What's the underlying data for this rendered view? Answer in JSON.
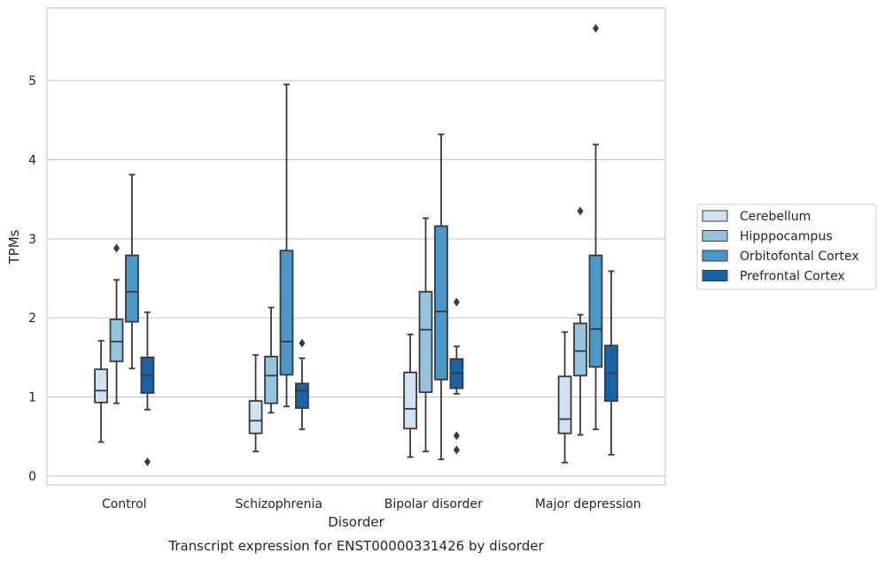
{
  "chart_data": {
    "type": "box",
    "xlabel": "Disorder",
    "ylabel": "TPMs",
    "caption": "Transcript expression for ENST00000331426 by disorder",
    "ylim": [
      -0.1,
      5.9
    ],
    "yticks": [
      0,
      1,
      2,
      3,
      4,
      5
    ],
    "grid": "horizontal",
    "legend_position": "right",
    "categories": [
      "Control",
      "Schizophrenia",
      "Bipolar disorder",
      "Major depression"
    ],
    "series": [
      {
        "name": "Cerebellum",
        "color": "#d0e1f2",
        "boxes": [
          {
            "whislo": 0.43,
            "q1": 0.93,
            "med": 1.08,
            "q3": 1.35,
            "whishi": 1.71,
            "fliers": []
          },
          {
            "whislo": 0.31,
            "q1": 0.54,
            "med": 0.7,
            "q3": 0.95,
            "whishi": 1.53,
            "fliers": []
          },
          {
            "whislo": 0.24,
            "q1": 0.6,
            "med": 0.85,
            "q3": 1.31,
            "whishi": 1.79,
            "fliers": []
          },
          {
            "whislo": 0.17,
            "q1": 0.54,
            "med": 0.72,
            "q3": 1.26,
            "whishi": 1.82,
            "fliers": []
          }
        ]
      },
      {
        "name": "Hipppocampus",
        "color": "#94c4df",
        "boxes": [
          {
            "whislo": 0.92,
            "q1": 1.45,
            "med": 1.7,
            "q3": 1.98,
            "whishi": 2.48,
            "fliers": [
              2.88
            ]
          },
          {
            "whislo": 0.8,
            "q1": 0.92,
            "med": 1.27,
            "q3": 1.51,
            "whishi": 2.13,
            "fliers": []
          },
          {
            "whislo": 0.31,
            "q1": 1.06,
            "med": 1.85,
            "q3": 2.33,
            "whishi": 3.26,
            "fliers": []
          },
          {
            "whislo": 0.52,
            "q1": 1.27,
            "med": 1.58,
            "q3": 1.93,
            "whishi": 2.04,
            "fliers": [
              3.35
            ]
          }
        ]
      },
      {
        "name": "Orbitofontal Cortex",
        "color": "#4a98c9",
        "boxes": [
          {
            "whislo": 1.36,
            "q1": 1.95,
            "med": 2.33,
            "q3": 2.79,
            "whishi": 3.81,
            "fliers": []
          },
          {
            "whislo": 0.88,
            "q1": 1.28,
            "med": 1.7,
            "q3": 2.85,
            "whishi": 4.95,
            "fliers": []
          },
          {
            "whislo": 0.21,
            "q1": 1.22,
            "med": 2.08,
            "q3": 3.16,
            "whishi": 4.32,
            "fliers": []
          },
          {
            "whislo": 0.59,
            "q1": 1.38,
            "med": 1.86,
            "q3": 2.79,
            "whishi": 4.19,
            "fliers": [
              5.66
            ]
          }
        ]
      },
      {
        "name": "Prefrontal Cortex",
        "color": "#1764ab",
        "boxes": [
          {
            "whislo": 0.84,
            "q1": 1.05,
            "med": 1.27,
            "q3": 1.5,
            "whishi": 2.07,
            "fliers": [
              0.18
            ]
          },
          {
            "whislo": 0.59,
            "q1": 0.86,
            "med": 1.08,
            "q3": 1.17,
            "whishi": 1.49,
            "fliers": [
              1.68
            ]
          },
          {
            "whislo": 1.04,
            "q1": 1.11,
            "med": 1.3,
            "q3": 1.48,
            "whishi": 1.64,
            "fliers": [
              2.2,
              0.51,
              0.33
            ]
          },
          {
            "whislo": 0.27,
            "q1": 0.95,
            "med": 1.3,
            "q3": 1.65,
            "whishi": 2.59,
            "fliers": []
          }
        ]
      }
    ]
  }
}
